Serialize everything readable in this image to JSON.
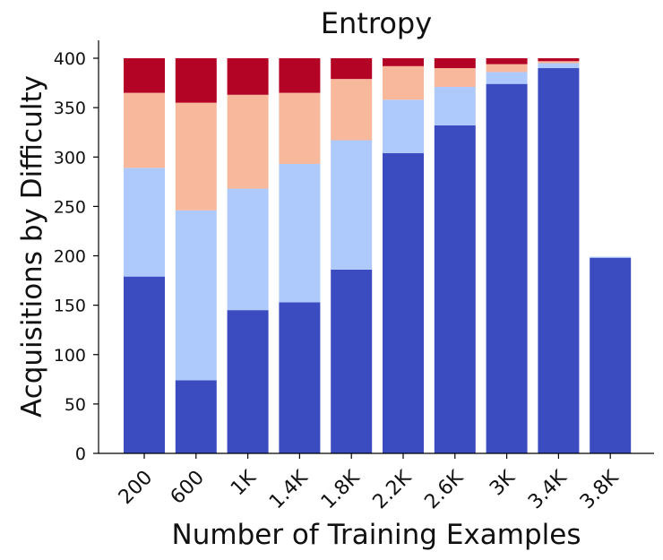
{
  "chart_data": {
    "type": "bar",
    "stacked": true,
    "title": "Entropy",
    "xlabel": "Number of Training Examples",
    "ylabel": "Acquisitions by Difficulty",
    "categories": [
      "200",
      "600",
      "1K",
      "1.4K",
      "1.8K",
      "2.2K",
      "2.6K",
      "3K",
      "3.4K",
      "3.8K"
    ],
    "yticks": [
      0,
      50,
      100,
      150,
      200,
      250,
      300,
      350,
      400
    ],
    "ylim": [
      0,
      420
    ],
    "grid": false,
    "legend": "none",
    "series": [
      {
        "color": "#3b4cc0",
        "values": [
          179,
          74,
          145,
          153,
          186,
          304,
          332,
          374,
          390,
          198
        ]
      },
      {
        "color": "#aec9fc",
        "values": [
          110,
          172,
          123,
          140,
          131,
          54,
          39,
          12,
          5,
          1
        ]
      },
      {
        "color": "#f7b89c",
        "values": [
          76,
          109,
          95,
          72,
          62,
          34,
          19,
          8,
          2,
          0
        ]
      },
      {
        "color": "#b40426",
        "values": [
          35,
          45,
          37,
          35,
          21,
          8,
          10,
          6,
          3,
          0
        ]
      }
    ]
  }
}
